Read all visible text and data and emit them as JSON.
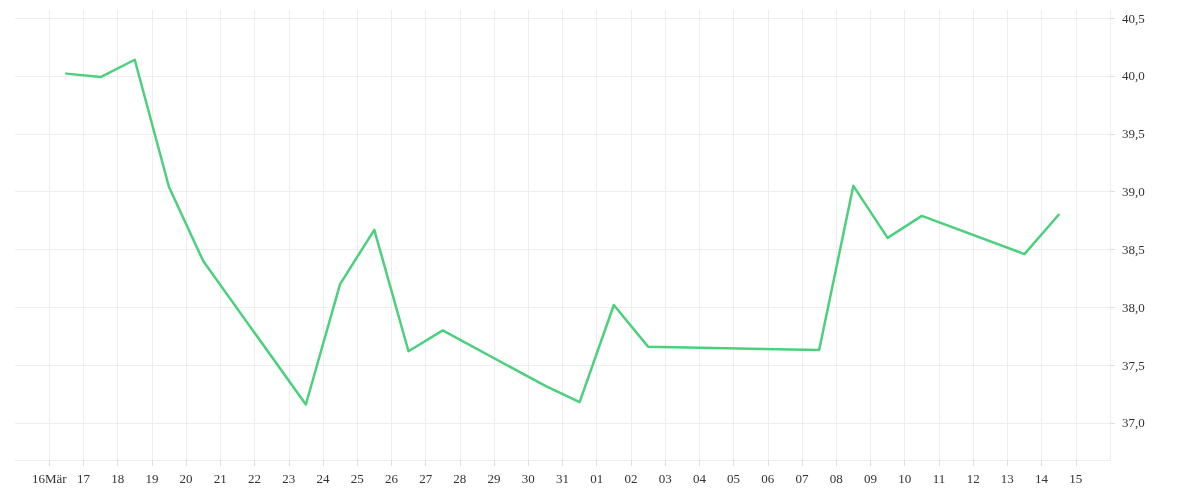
{
  "chart_data": {
    "type": "line",
    "x": [
      "--03-16T12:00",
      "--03-17T12:00",
      "--03-18T12:00",
      "--03-19T12:00",
      "--03-20T12:00",
      "--03-23T12:00",
      "--03-24T12:00",
      "--03-25T12:00",
      "--03-26T12:00",
      "--03-27T12:00",
      "--03-30T12:00",
      "--03-31T12:00",
      "--04-01T12:00",
      "--04-02T12:00",
      "--04-07T12:00",
      "--04-08T12:00",
      "--04-09T12:00",
      "--04-10T12:00",
      "--04-13T12:00",
      "--04-14T12:00"
    ],
    "series": [
      {
        "color": "#4cd07d",
        "values": [
          40.02,
          39.99,
          40.14,
          39.04,
          38.4,
          37.16,
          38.2,
          38.67,
          37.62,
          37.8,
          37.32,
          37.18,
          38.02,
          37.66,
          37.63,
          39.05,
          38.6,
          38.79,
          38.46,
          38.8
        ]
      }
    ],
    "xlim": [
      "--03-15",
      "--04-16"
    ],
    "xticks": [
      {
        "value": "--03-16",
        "label": "16Mär"
      },
      {
        "value": "--03-17",
        "label": "17"
      },
      {
        "value": "--03-18",
        "label": "18"
      },
      {
        "value": "--03-19",
        "label": "19"
      },
      {
        "value": "--03-20",
        "label": "20"
      },
      {
        "value": "--03-21",
        "label": "21"
      },
      {
        "value": "--03-22",
        "label": "22"
      },
      {
        "value": "--03-23",
        "label": "23"
      },
      {
        "value": "--03-24",
        "label": "24"
      },
      {
        "value": "--03-25",
        "label": "25"
      },
      {
        "value": "--03-26",
        "label": "26"
      },
      {
        "value": "--03-27",
        "label": "27"
      },
      {
        "value": "--03-28",
        "label": "28"
      },
      {
        "value": "--03-29",
        "label": "29"
      },
      {
        "value": "--03-30",
        "label": "30"
      },
      {
        "value": "--03-31",
        "label": "31"
      },
      {
        "value": "--04-01",
        "label": "01"
      },
      {
        "value": "--04-02",
        "label": "02"
      },
      {
        "value": "--04-03",
        "label": "03"
      },
      {
        "value": "--04-04",
        "label": "04"
      },
      {
        "value": "--04-05",
        "label": "05"
      },
      {
        "value": "--04-06",
        "label": "06"
      },
      {
        "value": "--04-07",
        "label": "07"
      },
      {
        "value": "--04-08",
        "label": "08"
      },
      {
        "value": "--04-09",
        "label": "09"
      },
      {
        "value": "--04-10",
        "label": "10"
      },
      {
        "value": "--04-11",
        "label": "11"
      },
      {
        "value": "--04-12",
        "label": "12"
      },
      {
        "value": "--04-13",
        "label": "13"
      },
      {
        "value": "--04-14",
        "label": "14"
      },
      {
        "value": "--04-15",
        "label": "15"
      }
    ],
    "ylim": [
      36.68,
      40.57
    ],
    "yticks": [
      {
        "value": 37,
        "label": "37,0"
      },
      {
        "value": 37.5,
        "label": "37,5"
      },
      {
        "value": 38,
        "label": "38,0"
      },
      {
        "value": 38.5,
        "label": "38,5"
      },
      {
        "value": 39,
        "label": "39,0"
      },
      {
        "value": 39.5,
        "label": "39,5"
      },
      {
        "value": 40,
        "label": "40,0"
      },
      {
        "value": 40.5,
        "label": "40,5"
      }
    ],
    "grid": true,
    "marker": "none",
    "line_style": "solid"
  }
}
